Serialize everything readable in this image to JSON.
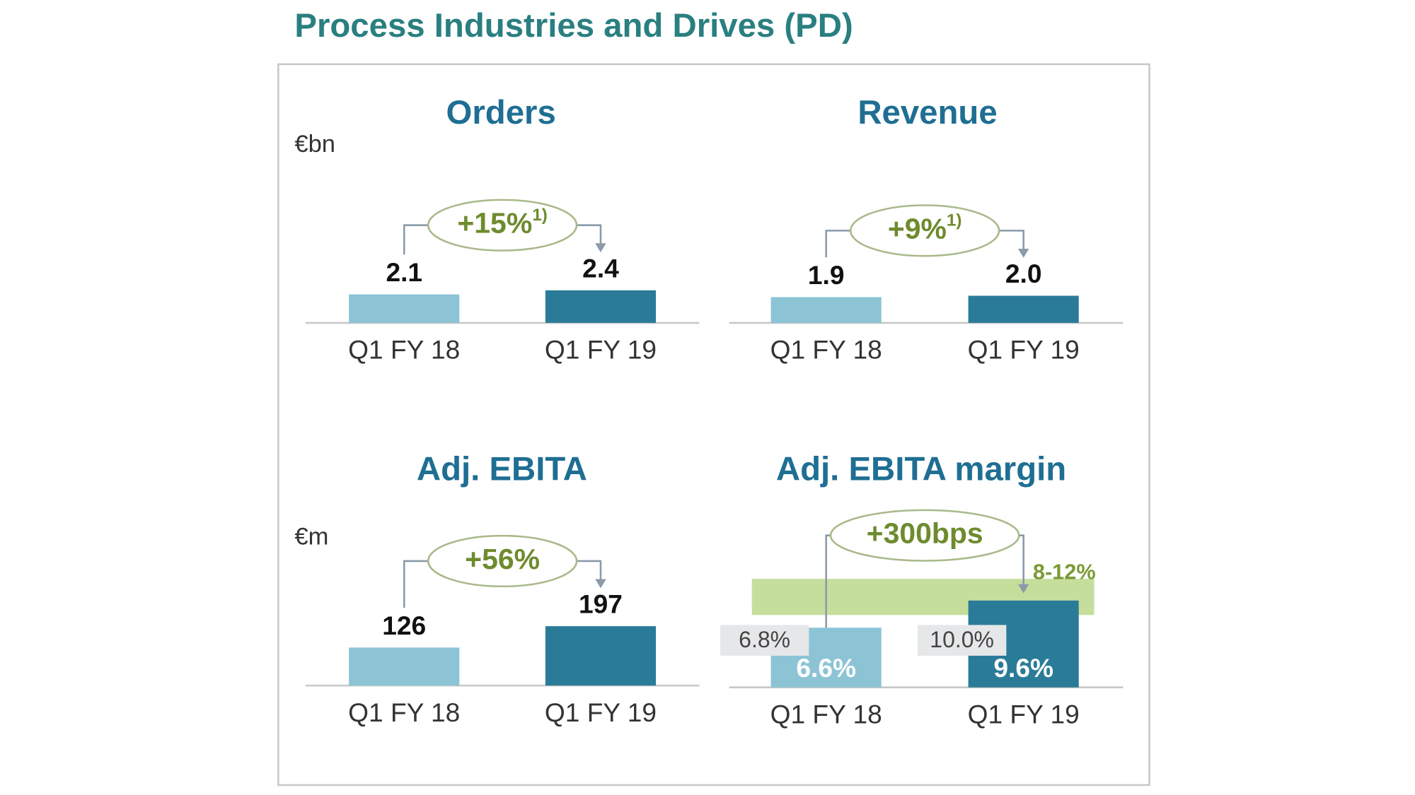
{
  "title": "Process Industries and Drives (PD)",
  "chart_data": [
    {
      "type": "bar",
      "title": "Orders",
      "unit": "€bn",
      "categories": [
        "Q1 FY 18",
        "Q1 FY 19"
      ],
      "values": [
        2.1,
        2.4
      ],
      "colors": [
        "#8cc4d6",
        "#2a7b98"
      ],
      "ylim": [
        0,
        8
      ],
      "change": "+15%",
      "footnote": "1)"
    },
    {
      "type": "bar",
      "title": "Revenue",
      "categories": [
        "Q1 FY 18",
        "Q1 FY 19"
      ],
      "values": [
        1.9,
        2.0
      ],
      "value_labels": [
        "1.9",
        "2.0"
      ],
      "colors": [
        "#8cc4d6",
        "#2a7b98"
      ],
      "ylim": [
        0,
        8
      ],
      "change": "+9%",
      "footnote": "1)"
    },
    {
      "type": "bar",
      "title": "Adj. EBITA",
      "unit": "€m",
      "categories": [
        "Q1 FY 18",
        "Q1 FY 19"
      ],
      "values": [
        126,
        197
      ],
      "colors": [
        "#8cc4d6",
        "#2a7b98"
      ],
      "ylim": [
        0,
        360
      ],
      "change": "+56%"
    },
    {
      "type": "bar",
      "title": "Adj. EBITA margin",
      "categories": [
        "Q1 FY 18",
        "Q1 FY 19"
      ],
      "values": [
        6.6,
        9.6
      ],
      "value_labels": [
        "6.6%",
        "9.6%"
      ],
      "label_position": "inside",
      "comparison_values": [
        6.8,
        10.0
      ],
      "comparison_labels": [
        "6.8%",
        "10.0%"
      ],
      "target_range": [
        8,
        12
      ],
      "target_label": "8-12%",
      "target_color": "#c6de9c",
      "colors": [
        "#8cc4d6",
        "#2a7b98"
      ],
      "ylim": [
        0,
        12
      ],
      "change": "+300bps"
    }
  ]
}
